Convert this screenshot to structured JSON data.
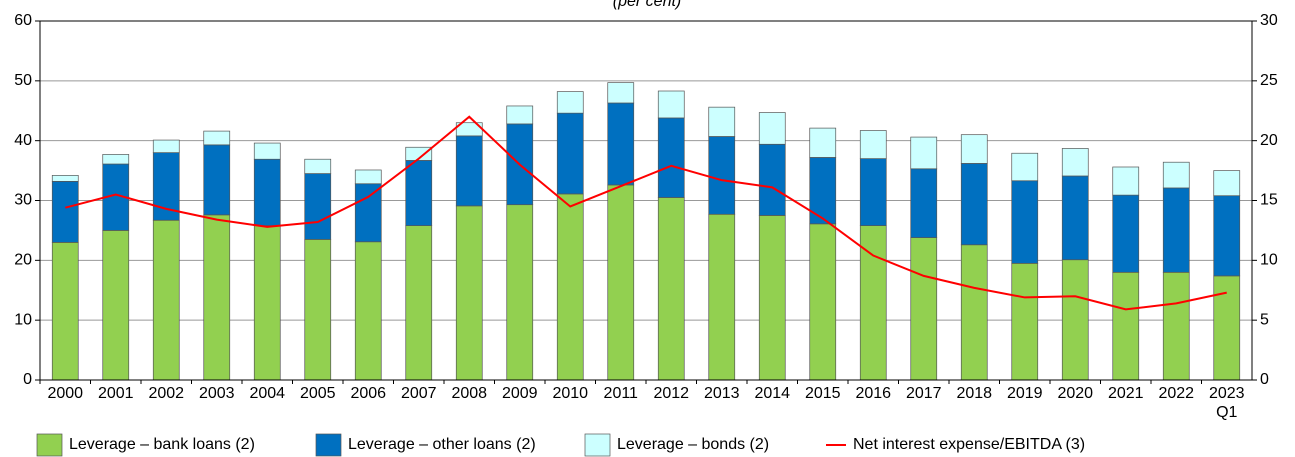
{
  "chart_data": {
    "type": "stacked-bar-line",
    "subtitle": "(per cent)",
    "categories": [
      "2000",
      "2001",
      "2002",
      "2003",
      "2004",
      "2005",
      "2006",
      "2007",
      "2008",
      "2009",
      "2010",
      "2011",
      "2012",
      "2013",
      "2014",
      "2015",
      "2016",
      "2017",
      "2018",
      "2019",
      "2020",
      "2021",
      "2022",
      "2023\nQ1"
    ],
    "series": [
      {
        "name": "Leverage – bank loans (2)",
        "color": "#92d050",
        "values": [
          23.0,
          25.0,
          26.7,
          27.6,
          25.8,
          23.5,
          23.1,
          25.8,
          29.1,
          29.3,
          31.1,
          32.6,
          30.5,
          27.7,
          27.5,
          26.1,
          25.8,
          23.8,
          22.6,
          19.5,
          20.1,
          18.0,
          18.0,
          17.4
        ]
      },
      {
        "name": "Leverage – other loans (2)",
        "color": "#0070c0",
        "values": [
          10.2,
          11.1,
          11.3,
          11.7,
          11.1,
          11.0,
          9.7,
          10.9,
          11.7,
          13.5,
          13.5,
          13.7,
          13.3,
          13.0,
          11.9,
          11.1,
          11.2,
          11.5,
          13.6,
          13.8,
          14.0,
          12.9,
          14.1,
          13.4
        ]
      },
      {
        "name": "Leverage – bonds (2)",
        "color": "#ccffff",
        "values": [
          1.0,
          1.6,
          2.1,
          2.3,
          2.7,
          2.4,
          2.3,
          2.2,
          2.2,
          3.0,
          3.6,
          3.4,
          4.5,
          4.9,
          5.3,
          4.9,
          4.7,
          5.3,
          4.8,
          4.6,
          4.6,
          4.7,
          4.3,
          4.2
        ]
      },
      {
        "name": "Net interest expense/EBITDA (3)",
        "color": "#ff0000",
        "axis": "y2",
        "values": [
          14.4,
          15.5,
          14.3,
          13.4,
          12.8,
          13.2,
          15.3,
          18.5,
          22.0,
          18.0,
          14.5,
          16.2,
          17.9,
          16.7,
          16.1,
          13.5,
          10.4,
          8.7,
          7.7,
          6.9,
          7.0,
          5.9,
          6.4,
          7.3
        ]
      }
    ],
    "ylim": [
      0,
      60
    ],
    "yticks": [
      0,
      10,
      20,
      30,
      40,
      50,
      60
    ],
    "y2lim": [
      0,
      30
    ],
    "y2ticks": [
      0,
      5,
      10,
      15,
      20,
      25,
      30
    ],
    "grid": true
  }
}
